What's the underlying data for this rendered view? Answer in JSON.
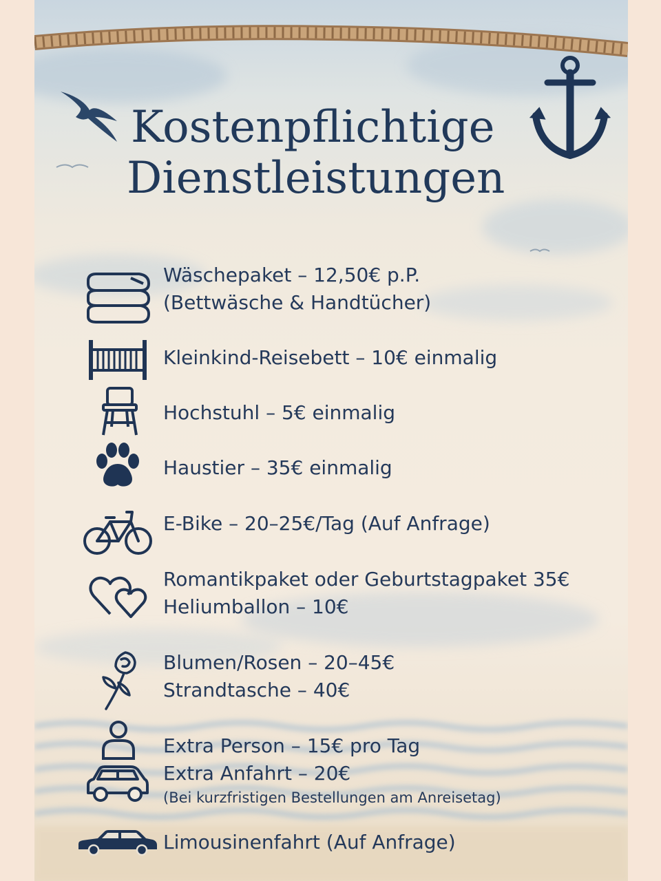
{
  "title": {
    "line1": "Kostenpflichtige",
    "line2": "Dienstleistungen"
  },
  "colors": {
    "ink": "#21395a",
    "rope": "#b8916a",
    "paper": "#f4ebdf",
    "sky": "#c9d6e0",
    "outer": "#f7e6d8"
  },
  "services": [
    {
      "icon": "folded-towels-icon",
      "lines": [
        "Wäschepaket – 12,50€ p.P.",
        "(Bettwäsche & Handtücher)"
      ]
    },
    {
      "icon": "crib-icon",
      "lines": [
        "Kleinkind-Reisebett – 10€ einmalig"
      ]
    },
    {
      "icon": "high-chair-icon",
      "lines": [
        "Hochstuhl – 5€ einmalig"
      ]
    },
    {
      "icon": "paw-icon",
      "lines": [
        "Haustier – 35€ einmalig"
      ]
    },
    {
      "icon": "bicycle-icon",
      "lines": [
        "E-Bike – 20–25€/Tag (Auf Anfrage)"
      ]
    },
    {
      "icon": "two-hearts-icon",
      "lines": [
        "Romantikpaket oder Geburtstagpaket 35€",
        "Heliumballon – 10€"
      ]
    },
    {
      "icon": "rose-icon",
      "lines": [
        "Blumen/Rosen – 20–45€",
        "Strandtasche – 40€"
      ]
    },
    {
      "icon": "person-icon",
      "lines": [
        "Extra Person – 15€ pro Tag"
      ]
    },
    {
      "icon": "car-icon",
      "lines": [
        "Extra Anfahrt – 20€"
      ],
      "note": "(Bei kurzfristigen Bestellungen am Anreisetag)"
    },
    {
      "icon": "limousine-icon",
      "lines": [
        "Limousinenfahrt (Auf Anfrage)"
      ]
    }
  ]
}
